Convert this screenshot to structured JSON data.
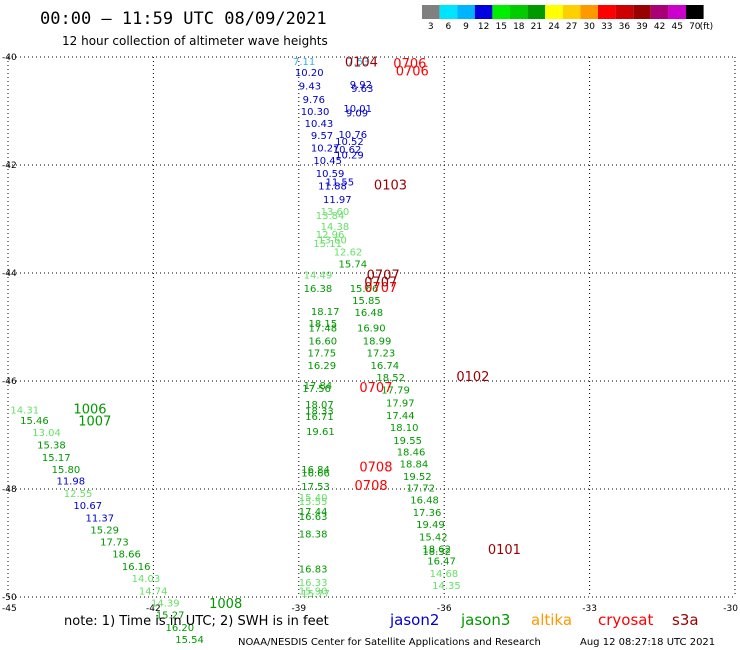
{
  "header": {
    "title": "00:00 – 11:59 UTC 08/09/2021",
    "subtitle": "12 hour collection of altimeter wave heights"
  },
  "legend": {
    "unit": "(ft)",
    "bins": [
      {
        "label": "3",
        "color": "#808080"
      },
      {
        "label": "6",
        "color": "#00e5ff"
      },
      {
        "label": "9",
        "color": "#00b4ff"
      },
      {
        "label": "12",
        "color": "#0000e0"
      },
      {
        "label": "15",
        "color": "#00ee00"
      },
      {
        "label": "18",
        "color": "#00cc00"
      },
      {
        "label": "21",
        "color": "#009900"
      },
      {
        "label": "24",
        "color": "#ffff00"
      },
      {
        "label": "27",
        "color": "#ffd000"
      },
      {
        "label": "30",
        "color": "#ff9900"
      },
      {
        "label": "33",
        "color": "#ff0000"
      },
      {
        "label": "36",
        "color": "#cc0000"
      },
      {
        "label": "39",
        "color": "#990000"
      },
      {
        "label": "42",
        "color": "#aa0077"
      },
      {
        "label": "45",
        "color": "#cc00cc"
      },
      {
        "label": "70",
        "color": "#000000"
      }
    ]
  },
  "footer": {
    "note": "note: 1) Time is in UTC; 2) SWH is in feet",
    "satellites": [
      {
        "name": "jason2",
        "color": "#0000cc"
      },
      {
        "name": "jason3",
        "color": "#009900"
      },
      {
        "name": "altika",
        "color": "#ff9900"
      },
      {
        "name": "cryosat",
        "color": "#ff0000"
      },
      {
        "name": "s3a",
        "color": "#990000"
      }
    ],
    "credit_left": "NOAA/NESDIS Center for Satellite Applications and Research",
    "credit_right": "Aug 12 08:27:18 UTC 2021"
  },
  "chart_data": {
    "type": "scatter",
    "x_ticks": [
      "-45",
      "-42",
      "-39",
      "-36",
      "-33",
      "-30"
    ],
    "y_ticks": [
      "-40",
      "-42",
      "-44",
      "-46",
      "-48",
      "-50"
    ],
    "xlim": [
      -45,
      -30
    ],
    "ylim": [
      -50,
      -40
    ],
    "grid": true,
    "colors": {
      "lightblue": "#33b4e8",
      "blue": "#0000cc",
      "lightgreen": "#66e066",
      "green": "#009900",
      "red": "#ff0000",
      "darkred": "#990000"
    },
    "values": [
      {
        "x": -39.12,
        "y": -40.15,
        "t": "7.11",
        "c": "lightblue"
      },
      {
        "x": -39.08,
        "y": -40.35,
        "t": "10.20",
        "c": "blue"
      },
      {
        "x": -39.0,
        "y": -40.6,
        "t": "9.43",
        "c": "blue"
      },
      {
        "x": -38.92,
        "y": -40.85,
        "t": "9.76",
        "c": "blue"
      },
      {
        "x": -38.96,
        "y": -41.07,
        "t": "10.30",
        "c": "blue"
      },
      {
        "x": -38.88,
        "y": -41.3,
        "t": "10.43",
        "c": "blue"
      },
      {
        "x": -38.75,
        "y": -41.52,
        "t": "9.57",
        "c": "blue"
      },
      {
        "x": -38.75,
        "y": -41.75,
        "t": "10.27",
        "c": "blue"
      },
      {
        "x": -38.7,
        "y": -41.98,
        "t": "10.45",
        "c": "blue"
      },
      {
        "x": -38.65,
        "y": -42.22,
        "t": "10.59",
        "c": "blue"
      },
      {
        "x": -38.6,
        "y": -42.45,
        "t": "11.88",
        "c": "blue"
      },
      {
        "x": -38.5,
        "y": -42.7,
        "t": "11.97",
        "c": "blue"
      },
      {
        "x": -38.0,
        "y": -40.15,
        "t": "7.53",
        "c": "lightblue"
      },
      {
        "x": -37.95,
        "y": -40.57,
        "t": "9.92",
        "c": "blue"
      },
      {
        "x": -37.92,
        "y": -40.65,
        "t": "9.63",
        "c": "blue"
      },
      {
        "x": -38.08,
        "y": -41.02,
        "t": "10.01",
        "c": "blue"
      },
      {
        "x": -38.03,
        "y": -41.1,
        "t": "9.09",
        "c": "blue"
      },
      {
        "x": -38.18,
        "y": -41.5,
        "t": "10.76",
        "c": "blue"
      },
      {
        "x": -38.25,
        "y": -41.63,
        "t": "10.52",
        "c": "blue"
      },
      {
        "x": -38.3,
        "y": -41.78,
        "t": "10.62",
        "c": "blue"
      },
      {
        "x": -38.25,
        "y": -41.88,
        "t": "10.29",
        "c": "blue"
      },
      {
        "x": -38.45,
        "y": -42.38,
        "t": "11.55",
        "c": "blue"
      },
      {
        "x": -38.55,
        "y": -42.93,
        "t": "13.60",
        "c": "lightgreen"
      },
      {
        "x": -38.65,
        "y": -43.0,
        "t": "13.84",
        "c": "lightgreen"
      },
      {
        "x": -38.55,
        "y": -43.2,
        "t": "14.38",
        "c": "lightgreen"
      },
      {
        "x": -38.65,
        "y": -43.35,
        "t": "12.96",
        "c": "lightgreen"
      },
      {
        "x": -38.6,
        "y": -43.45,
        "t": "13.60",
        "c": "lightgreen"
      },
      {
        "x": -38.7,
        "y": -43.52,
        "t": "15.11",
        "c": "lightgreen"
      },
      {
        "x": -38.28,
        "y": -43.68,
        "t": "12.62",
        "c": "lightgreen"
      },
      {
        "x": -38.18,
        "y": -43.9,
        "t": "15.74",
        "c": "green"
      },
      {
        "x": -38.9,
        "y": -44.1,
        "t": "14.49",
        "c": "lightgreen"
      },
      {
        "x": -38.9,
        "y": -44.35,
        "t": "16.38",
        "c": "green"
      },
      {
        "x": -37.95,
        "y": -44.35,
        "t": "15.66",
        "c": "green"
      },
      {
        "x": -37.9,
        "y": -44.57,
        "t": "15.85",
        "c": "green"
      },
      {
        "x": -37.85,
        "y": -44.8,
        "t": "16.48",
        "c": "green"
      },
      {
        "x": -38.75,
        "y": -44.78,
        "t": "18.17",
        "c": "green"
      },
      {
        "x": -38.8,
        "y": -45.0,
        "t": "18.15",
        "c": "green"
      },
      {
        "x": -38.8,
        "y": -45.08,
        "t": "17.48",
        "c": "green"
      },
      {
        "x": -37.8,
        "y": -45.08,
        "t": "16.90",
        "c": "green"
      },
      {
        "x": -38.8,
        "y": -45.32,
        "t": "16.60",
        "c": "green"
      },
      {
        "x": -37.68,
        "y": -45.32,
        "t": "18.99",
        "c": "green"
      },
      {
        "x": -38.82,
        "y": -45.55,
        "t": "17.75",
        "c": "green"
      },
      {
        "x": -37.6,
        "y": -45.55,
        "t": "17.23",
        "c": "green"
      },
      {
        "x": -38.82,
        "y": -45.78,
        "t": "16.29",
        "c": "green"
      },
      {
        "x": -37.52,
        "y": -45.78,
        "t": "16.74",
        "c": "green"
      },
      {
        "x": -38.93,
        "y": -46.2,
        "t": "17.56",
        "c": "green"
      },
      {
        "x": -38.9,
        "y": -46.15,
        "t": "17.84",
        "c": "green"
      },
      {
        "x": -37.4,
        "y": -46.0,
        "t": "18.52",
        "c": "green"
      },
      {
        "x": -37.3,
        "y": -46.23,
        "t": "17.79",
        "c": "green"
      },
      {
        "x": -37.2,
        "y": -46.47,
        "t": "17.97",
        "c": "green"
      },
      {
        "x": -37.2,
        "y": -46.7,
        "t": "17.44",
        "c": "green"
      },
      {
        "x": -38.87,
        "y": -46.5,
        "t": "18.07",
        "c": "green"
      },
      {
        "x": -38.87,
        "y": -46.62,
        "t": "18.33",
        "c": "green"
      },
      {
        "x": -38.87,
        "y": -46.72,
        "t": "16.71",
        "c": "green"
      },
      {
        "x": -38.85,
        "y": -47.0,
        "t": "19.61",
        "c": "green"
      },
      {
        "x": -37.12,
        "y": -46.93,
        "t": "18.10",
        "c": "green"
      },
      {
        "x": -37.05,
        "y": -47.17,
        "t": "19.55",
        "c": "green"
      },
      {
        "x": -36.98,
        "y": -47.38,
        "t": "18.46",
        "c": "green"
      },
      {
        "x": -36.92,
        "y": -47.6,
        "t": "18.84",
        "c": "green"
      },
      {
        "x": -36.85,
        "y": -47.83,
        "t": "19.52",
        "c": "green"
      },
      {
        "x": -36.78,
        "y": -48.05,
        "t": "17.72",
        "c": "green"
      },
      {
        "x": -36.7,
        "y": -48.27,
        "t": "16.48",
        "c": "green"
      },
      {
        "x": -36.65,
        "y": -48.5,
        "t": "17.36",
        "c": "green"
      },
      {
        "x": -36.58,
        "y": -48.72,
        "t": "19.49",
        "c": "green"
      },
      {
        "x": -36.52,
        "y": -48.95,
        "t": "15.42",
        "c": "green"
      },
      {
        "x": -36.45,
        "y": -49.18,
        "t": "18.62",
        "c": "green"
      },
      {
        "x": -36.45,
        "y": -49.22,
        "t": "18.32",
        "c": "green"
      },
      {
        "x": -36.35,
        "y": -49.4,
        "t": "16.47",
        "c": "green"
      },
      {
        "x": -36.3,
        "y": -49.63,
        "t": "14.68",
        "c": "lightgreen"
      },
      {
        "x": -36.25,
        "y": -49.85,
        "t": "14.35",
        "c": "lightgreen"
      },
      {
        "x": -38.95,
        "y": -47.7,
        "t": "16.84",
        "c": "green"
      },
      {
        "x": -38.95,
        "y": -47.77,
        "t": "16.66",
        "c": "green"
      },
      {
        "x": -38.95,
        "y": -48.02,
        "t": "17.53",
        "c": "green"
      },
      {
        "x": -39.0,
        "y": -48.22,
        "t": "15.40",
        "c": "lightgreen"
      },
      {
        "x": -39.0,
        "y": -48.3,
        "t": "15.55",
        "c": "lightgreen"
      },
      {
        "x": -39.0,
        "y": -48.48,
        "t": "17.44",
        "c": "green"
      },
      {
        "x": -39.0,
        "y": -48.57,
        "t": "16.63",
        "c": "green"
      },
      {
        "x": -39.0,
        "y": -48.9,
        "t": "18.38",
        "c": "green"
      },
      {
        "x": -39.0,
        "y": -49.55,
        "t": "16.83",
        "c": "green"
      },
      {
        "x": -39.0,
        "y": -49.8,
        "t": "16.33",
        "c": "lightgreen"
      },
      {
        "x": -39.0,
        "y": -49.95,
        "t": "15.90",
        "c": "lightgreen"
      },
      {
        "x": -38.95,
        "y": -50.0,
        "t": "15.77",
        "c": "lightgreen"
      },
      {
        "x": -44.95,
        "y": -46.6,
        "t": "14.31",
        "c": "lightgreen"
      },
      {
        "x": -44.75,
        "y": -46.8,
        "t": "15.46",
        "c": "green"
      },
      {
        "x": -44.5,
        "y": -47.02,
        "t": "13.04",
        "c": "lightgreen"
      },
      {
        "x": -44.4,
        "y": -47.25,
        "t": "15.38",
        "c": "green"
      },
      {
        "x": -44.3,
        "y": -47.48,
        "t": "15.17",
        "c": "green"
      },
      {
        "x": -44.1,
        "y": -47.7,
        "t": "15.80",
        "c": "green"
      },
      {
        "x": -44.0,
        "y": -47.92,
        "t": "11.98",
        "c": "blue"
      },
      {
        "x": -43.85,
        "y": -48.15,
        "t": "12.55",
        "c": "lightgreen"
      },
      {
        "x": -43.65,
        "y": -48.37,
        "t": "10.67",
        "c": "blue"
      },
      {
        "x": -43.4,
        "y": -48.6,
        "t": "11.37",
        "c": "blue"
      },
      {
        "x": -43.3,
        "y": -48.82,
        "t": "15.29",
        "c": "green"
      },
      {
        "x": -43.1,
        "y": -49.05,
        "t": "17.73",
        "c": "green"
      },
      {
        "x": -42.85,
        "y": -49.27,
        "t": "18.66",
        "c": "green"
      },
      {
        "x": -42.65,
        "y": -49.5,
        "t": "16.16",
        "c": "green"
      },
      {
        "x": -42.45,
        "y": -49.72,
        "t": "14.03",
        "c": "lightgreen"
      },
      {
        "x": -42.3,
        "y": -49.95,
        "t": "14.74",
        "c": "lightgreen"
      },
      {
        "x": -42.05,
        "y": -50.18,
        "t": "14.39",
        "c": "lightgreen"
      },
      {
        "x": -41.95,
        "y": -50.4,
        "t": "15.27",
        "c": "green"
      },
      {
        "x": -41.75,
        "y": -50.63,
        "t": "16.20",
        "c": "green"
      },
      {
        "x": -41.55,
        "y": -50.85,
        "t": "15.54",
        "c": "green"
      }
    ],
    "pass_labels": [
      {
        "x": -38.05,
        "y": -40.18,
        "t": "0104",
        "c": "darkred"
      },
      {
        "x": -37.05,
        "y": -40.2,
        "t": "0706",
        "c": "red"
      },
      {
        "x": -37.0,
        "y": -40.34,
        "t": "0706",
        "c": "red"
      },
      {
        "x": -37.45,
        "y": -42.45,
        "t": "0103",
        "c": "darkred"
      },
      {
        "x": -37.6,
        "y": -44.12,
        "t": "0707",
        "c": "darkred"
      },
      {
        "x": -37.65,
        "y": -44.35,
        "t": "0707",
        "c": "red"
      },
      {
        "x": -37.65,
        "y": -44.25,
        "t": "0707",
        "c": "darkred"
      },
      {
        "x": -37.75,
        "y": -46.2,
        "t": "0707",
        "c": "red"
      },
      {
        "x": -35.75,
        "y": -46.0,
        "t": "0102",
        "c": "darkred"
      },
      {
        "x": -37.75,
        "y": -47.68,
        "t": "0708",
        "c": "red"
      },
      {
        "x": -37.85,
        "y": -48.02,
        "t": "0708",
        "c": "red"
      },
      {
        "x": -35.1,
        "y": -49.2,
        "t": "0101",
        "c": "darkred"
      },
      {
        "x": -43.65,
        "y": -46.6,
        "t": "1006",
        "c": "green"
      },
      {
        "x": -43.55,
        "y": -46.82,
        "t": "1007",
        "c": "green"
      },
      {
        "x": -40.85,
        "y": -50.2,
        "t": "1008",
        "c": "green"
      }
    ]
  }
}
